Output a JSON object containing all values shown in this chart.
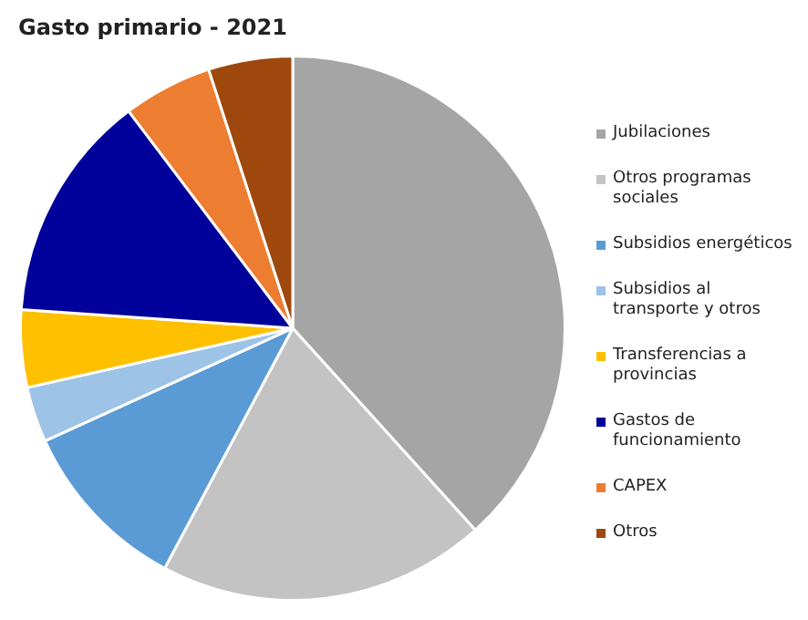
{
  "chart_data": {
    "type": "pie",
    "title": "Gasto primario - 2021",
    "categories": [
      "Jubilaciones",
      "Otros programas sociales",
      "Subsidios energéticos",
      "Subsidios al transporte y otros",
      "Transferencias a provincias",
      "Gastos de funcionamiento",
      "CAPEX",
      "Otros"
    ],
    "values": [
      38.3,
      19.5,
      10.4,
      3.3,
      4.6,
      13.6,
      5.3,
      5.0
    ],
    "colors": [
      "#a5a5a5",
      "#c3c3c3",
      "#5b9bd5",
      "#9dc3e6",
      "#ffc000",
      "#00009a",
      "#ed7d31",
      "#9e480e"
    ],
    "legend": "right"
  }
}
